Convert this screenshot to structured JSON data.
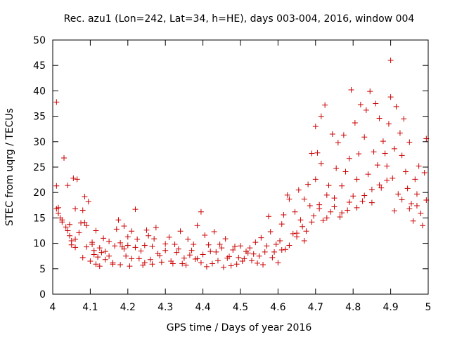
{
  "chart_data": {
    "type": "scatter",
    "title": "Rec. azu1 (Lon=242, Lat=34, h=HE), days 003-004, 2016, window 004",
    "xlabel": "GPS time / Days of year 2016",
    "ylabel": "STEC from uqrg / TECUs",
    "xlim": [
      4,
      5
    ],
    "ylim": [
      0,
      50
    ],
    "x_ticks": [
      "4",
      "4.1",
      "4.2",
      "4.3",
      "4.4",
      "4.5",
      "4.6",
      "4.7",
      "4.8",
      "4.9",
      "5"
    ],
    "y_ticks": [
      "0",
      "5",
      "10",
      "15",
      "20",
      "25",
      "30",
      "35",
      "40",
      "45",
      "50"
    ],
    "grid": false,
    "marker": "+",
    "color": "#cc0000",
    "series": [
      {
        "points": [
          [
            4.01,
            37.8
          ],
          [
            4.01,
            21.3
          ],
          [
            4.01,
            16.8
          ],
          [
            4.015,
            17.0
          ],
          [
            4.02,
            15.0
          ],
          [
            4.025,
            14.2
          ],
          [
            4.03,
            26.8
          ],
          [
            4.035,
            13.2
          ],
          [
            4.04,
            21.4
          ],
          [
            4.04,
            12.5
          ],
          [
            4.045,
            11.5
          ],
          [
            4.05,
            10.5
          ],
          [
            4.055,
            22.8
          ],
          [
            4.06,
            16.8
          ],
          [
            4.06,
            9.2
          ],
          [
            4.065,
            22.6
          ],
          [
            4.07,
            12.1
          ],
          [
            4.075,
            14.0
          ],
          [
            4.08,
            7.2
          ],
          [
            4.085,
            19.2
          ],
          [
            4.09,
            13.5
          ],
          [
            4.095,
            18.2
          ],
          [
            4.1,
            6.5
          ],
          [
            4.105,
            9.8
          ],
          [
            4.11,
            8.6
          ],
          [
            4.115,
            12.5
          ],
          [
            4.12,
            7.3
          ],
          [
            4.125,
            5.5
          ],
          [
            4.13,
            8.2
          ],
          [
            4.135,
            11.0
          ],
          [
            4.14,
            6.8
          ],
          [
            4.15,
            10.4
          ],
          [
            4.16,
            6.2
          ],
          [
            4.17,
            12.8
          ],
          [
            4.175,
            14.6
          ],
          [
            4.18,
            5.8
          ],
          [
            4.185,
            9.3
          ],
          [
            4.19,
            13.4
          ],
          [
            4.195,
            7.5
          ],
          [
            4.2,
            11.3
          ],
          [
            4.205,
            5.5
          ],
          [
            4.21,
            12.4
          ],
          [
            4.22,
            16.7
          ],
          [
            4.225,
            10.8
          ],
          [
            4.23,
            7.0
          ],
          [
            4.24,
            5.7
          ],
          [
            4.245,
            9.6
          ],
          [
            4.25,
            12.6
          ],
          [
            4.26,
            6.8
          ],
          [
            4.265,
            5.9
          ],
          [
            4.27,
            10.9
          ],
          [
            4.275,
            13.1
          ],
          [
            4.28,
            8.0
          ],
          [
            4.29,
            6.3
          ],
          [
            4.3,
            9.9
          ],
          [
            4.31,
            11.2
          ],
          [
            4.32,
            6.0
          ],
          [
            4.33,
            8.2
          ],
          [
            4.34,
            12.4
          ],
          [
            4.35,
            7.1
          ],
          [
            4.355,
            5.7
          ],
          [
            4.36,
            10.8
          ],
          [
            4.37,
            8.6
          ],
          [
            4.38,
            6.9
          ],
          [
            4.385,
            13.5
          ],
          [
            4.395,
            16.2
          ],
          [
            4.4,
            7.8
          ],
          [
            4.405,
            11.6
          ],
          [
            4.41,
            5.4
          ],
          [
            4.42,
            8.4
          ],
          [
            4.43,
            12.3
          ],
          [
            4.44,
            6.6
          ],
          [
            4.45,
            9.1
          ],
          [
            4.455,
            5.3
          ],
          [
            4.46,
            10.9
          ],
          [
            4.47,
            7.4
          ],
          [
            4.48,
            8.7
          ],
          [
            4.49,
            5.9
          ],
          [
            4.5,
            9.5
          ],
          [
            4.51,
            7.0
          ],
          [
            4.52,
            8.1
          ],
          [
            4.53,
            6.6
          ],
          [
            4.54,
            10.2
          ],
          [
            4.55,
            7.5
          ],
          [
            4.555,
            11.1
          ],
          [
            4.56,
            5.8
          ],
          [
            4.57,
            9.5
          ],
          [
            4.575,
            15.3
          ],
          [
            4.58,
            12.3
          ],
          [
            4.59,
            8.3
          ],
          [
            4.6,
            6.2
          ],
          [
            4.605,
            10.5
          ],
          [
            4.61,
            13.8
          ],
          [
            4.615,
            15.6
          ],
          [
            4.62,
            8.8
          ],
          [
            4.625,
            19.5
          ],
          [
            4.63,
            18.7
          ],
          [
            4.64,
            11.9
          ],
          [
            4.645,
            16.2
          ],
          [
            4.65,
            11.3
          ],
          [
            4.655,
            20.5
          ],
          [
            4.66,
            14.6
          ],
          [
            4.665,
            13.3
          ],
          [
            4.67,
            18.7
          ],
          [
            4.675,
            12.4
          ],
          [
            4.68,
            21.6
          ],
          [
            4.685,
            17.4
          ],
          [
            4.69,
            27.7
          ],
          [
            4.695,
            15.4
          ],
          [
            4.7,
            22.6
          ],
          [
            4.7,
            33.0
          ],
          [
            4.705,
            27.8
          ],
          [
            4.71,
            17.6
          ],
          [
            4.715,
            25.7
          ],
          [
            4.715,
            35.0
          ],
          [
            4.72,
            14.5
          ],
          [
            4.725,
            37.2
          ],
          [
            4.73,
            19.5
          ],
          [
            4.735,
            21.4
          ],
          [
            4.74,
            16.2
          ],
          [
            4.745,
            31.5
          ],
          [
            4.75,
            18.9
          ],
          [
            4.755,
            24.8
          ],
          [
            4.76,
            29.8
          ],
          [
            4.765,
            15.2
          ],
          [
            4.77,
            21.3
          ],
          [
            4.775,
            31.3
          ],
          [
            4.78,
            24.1
          ],
          [
            4.785,
            16.5
          ],
          [
            4.79,
            26.7
          ],
          [
            4.795,
            40.2
          ],
          [
            4.8,
            19.3
          ],
          [
            4.805,
            33.7
          ],
          [
            4.81,
            22.6
          ],
          [
            4.815,
            27.6
          ],
          [
            4.82,
            37.3
          ],
          [
            4.825,
            18.3
          ],
          [
            4.83,
            30.9
          ],
          [
            4.835,
            36.2
          ],
          [
            4.84,
            23.6
          ],
          [
            4.845,
            39.9
          ],
          [
            4.85,
            20.6
          ],
          [
            4.855,
            28.0
          ],
          [
            4.86,
            37.5
          ],
          [
            4.865,
            25.4
          ],
          [
            4.87,
            34.6
          ],
          [
            4.875,
            20.9
          ],
          [
            4.88,
            30.1
          ],
          [
            4.885,
            27.7
          ],
          [
            4.89,
            25.2
          ],
          [
            4.895,
            33.5
          ],
          [
            4.9,
            46.0
          ],
          [
            4.9,
            38.8
          ],
          [
            4.905,
            22.8
          ],
          [
            4.91,
            28.6
          ],
          [
            4.915,
            36.9
          ],
          [
            4.92,
            19.7
          ],
          [
            4.925,
            31.7
          ],
          [
            4.93,
            27.3
          ],
          [
            4.935,
            34.5
          ],
          [
            4.94,
            24.1
          ],
          [
            4.945,
            20.8
          ],
          [
            4.95,
            29.9
          ],
          [
            4.955,
            17.8
          ],
          [
            4.96,
            14.4
          ],
          [
            4.965,
            22.6
          ],
          [
            4.97,
            19.7
          ],
          [
            4.975,
            25.2
          ],
          [
            4.98,
            15.9
          ],
          [
            4.985,
            13.5
          ],
          [
            4.99,
            23.9
          ],
          [
            4.995,
            30.6
          ],
          [
            4.995,
            18.5
          ],
          [
            4.015,
            15.9
          ],
          [
            4.025,
            14.6
          ],
          [
            4.045,
            13.7
          ],
          [
            4.05,
            9.7
          ],
          [
            4.06,
            10.8
          ],
          [
            4.08,
            16.5
          ],
          [
            4.085,
            14.1
          ],
          [
            4.09,
            9.3
          ],
          [
            4.105,
            10.2
          ],
          [
            4.11,
            7.8
          ],
          [
            4.115,
            5.9
          ],
          [
            4.125,
            9.1
          ],
          [
            4.14,
            8.4
          ],
          [
            4.15,
            7.5
          ],
          [
            4.16,
            5.9
          ],
          [
            4.165,
            9.5
          ],
          [
            4.18,
            10.1
          ],
          [
            4.19,
            8.9
          ],
          [
            4.2,
            9.6
          ],
          [
            4.21,
            7.0
          ],
          [
            4.22,
            9.2
          ],
          [
            4.235,
            8.5
          ],
          [
            4.245,
            6.2
          ],
          [
            4.255,
            11.5
          ],
          [
            4.265,
            9.4
          ],
          [
            4.285,
            7.6
          ],
          [
            4.3,
            8.6
          ],
          [
            4.315,
            6.5
          ],
          [
            4.325,
            9.8
          ],
          [
            4.335,
            8.9
          ],
          [
            4.345,
            6.0
          ],
          [
            4.365,
            7.7
          ],
          [
            4.375,
            9.8
          ],
          [
            4.385,
            7.0
          ],
          [
            4.395,
            6.2
          ],
          [
            4.415,
            9.7
          ],
          [
            4.425,
            6.0
          ],
          [
            4.435,
            8.3
          ],
          [
            4.445,
            9.8
          ],
          [
            4.465,
            7.1
          ],
          [
            4.475,
            5.6
          ],
          [
            4.485,
            9.4
          ],
          [
            4.495,
            7.2
          ],
          [
            4.505,
            6.5
          ],
          [
            4.515,
            8.4
          ],
          [
            4.525,
            9.1
          ],
          [
            4.535,
            7.9
          ],
          [
            4.545,
            6.1
          ],
          [
            4.565,
            8.3
          ],
          [
            4.585,
            7.2
          ],
          [
            4.595,
            9.8
          ],
          [
            4.61,
            8.7
          ],
          [
            4.63,
            9.6
          ],
          [
            4.65,
            12.0
          ],
          [
            4.67,
            10.5
          ],
          [
            4.69,
            14.2
          ],
          [
            4.71,
            16.8
          ],
          [
            4.73,
            15.0
          ],
          [
            4.75,
            17.2
          ],
          [
            4.77,
            16.0
          ],
          [
            4.79,
            18.1
          ],
          [
            4.81,
            17.0
          ],
          [
            4.83,
            19.4
          ],
          [
            4.85,
            18.0
          ],
          [
            4.87,
            21.5
          ],
          [
            4.89,
            22.4
          ],
          [
            4.91,
            16.4
          ],
          [
            4.93,
            18.6
          ],
          [
            4.95,
            16.8
          ],
          [
            4.97,
            17.4
          ]
        ]
      }
    ]
  }
}
